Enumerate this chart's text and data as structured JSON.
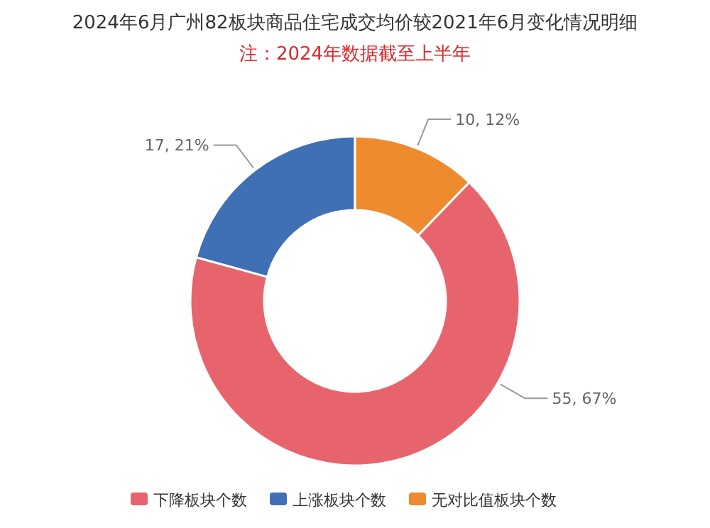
{
  "chart_data": {
    "type": "donut",
    "title": "2024年6月广州82板块商品住宅成交均价较2021年6月变化情况明细",
    "subtitle": "注：2024年数据截至上半年",
    "categories": [
      "下降板块个数",
      "上涨板块个数",
      "无对比值板块个数"
    ],
    "values": [
      55,
      17,
      10
    ],
    "colors": [
      "#e8646c",
      "#3f6fb5",
      "#ef8a2f"
    ],
    "value_labels": [
      "55, 67%",
      "17, 21%",
      "10, 12%"
    ],
    "legend": "bottom"
  }
}
